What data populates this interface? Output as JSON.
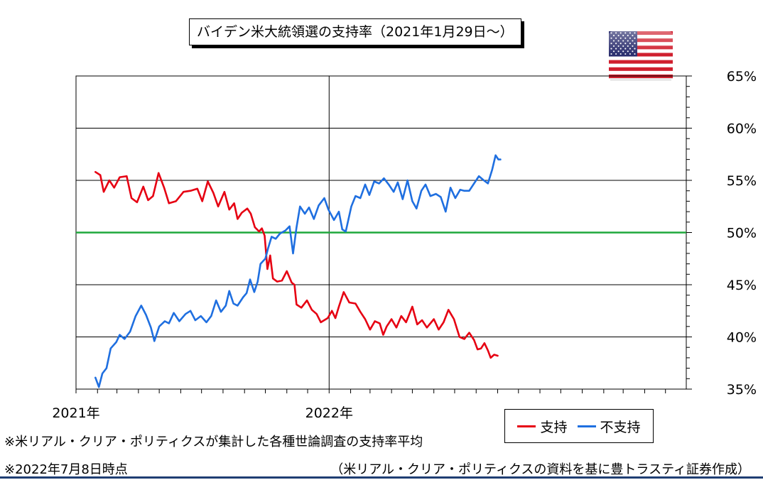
{
  "title": "バイデン米大統領選の支持率（2021年1月29日～）",
  "flag": {
    "icon": "us-flag-icon",
    "colors": {
      "red": "#d01f2e",
      "white": "#ffffff",
      "blue": "#2b2e6e"
    }
  },
  "legend": {
    "approve_label": "支持",
    "disapprove_label": "不支持"
  },
  "notes": {
    "note1": "※米リアル・クリア・ポリティクスが集計した各種世論調査の支持率平均",
    "note2": "※2022年7月8日時点",
    "source": "（米リアル・クリア・ポリティクスの資料を基に豊トラスティ証券作成）"
  },
  "chart_data": {
    "type": "line",
    "title": "バイデン米大統領選の支持率（2021年1月29日～）",
    "xlabel": "",
    "ylabel": "",
    "x_range": [
      "2021-01-01",
      "2023-05-31"
    ],
    "x_tick_labels": [
      {
        "date": "2021-01-01",
        "label": "2021年"
      },
      {
        "date": "2022-01-01",
        "label": "2022年"
      }
    ],
    "ylim": [
      35,
      65
    ],
    "y_ticks": [
      35,
      40,
      45,
      50,
      55,
      60,
      65
    ],
    "y_tick_labels": [
      "35%",
      "40%",
      "45%",
      "50%",
      "55%",
      "60%",
      "65%"
    ],
    "y_axis_side": "right",
    "grid": true,
    "reference_line": {
      "value": 50,
      "color": "#1fa83c"
    },
    "legend_position": "bottom-right",
    "series": [
      {
        "name": "支持",
        "color": "#e60012",
        "points": [
          [
            "2021-01-29",
            55.8
          ],
          [
            "2021-02-05",
            55.5
          ],
          [
            "2021-02-10",
            53.9
          ],
          [
            "2021-02-18",
            55.0
          ],
          [
            "2021-02-25",
            54.3
          ],
          [
            "2021-03-05",
            55.3
          ],
          [
            "2021-03-15",
            55.4
          ],
          [
            "2021-03-22",
            53.3
          ],
          [
            "2021-03-30",
            52.9
          ],
          [
            "2021-04-08",
            54.4
          ],
          [
            "2021-04-15",
            53.1
          ],
          [
            "2021-04-22",
            53.5
          ],
          [
            "2021-04-30",
            55.7
          ],
          [
            "2021-05-08",
            54.3
          ],
          [
            "2021-05-15",
            52.8
          ],
          [
            "2021-05-25",
            53.0
          ],
          [
            "2021-06-05",
            53.9
          ],
          [
            "2021-06-15",
            54.0
          ],
          [
            "2021-06-25",
            54.2
          ],
          [
            "2021-07-02",
            53.0
          ],
          [
            "2021-07-10",
            54.9
          ],
          [
            "2021-07-18",
            53.8
          ],
          [
            "2021-07-25",
            52.5
          ],
          [
            "2021-08-03",
            53.9
          ],
          [
            "2021-08-10",
            52.2
          ],
          [
            "2021-08-17",
            52.8
          ],
          [
            "2021-08-22",
            51.3
          ],
          [
            "2021-08-28",
            51.9
          ],
          [
            "2021-09-05",
            52.3
          ],
          [
            "2021-09-10",
            51.8
          ],
          [
            "2021-09-16",
            50.5
          ],
          [
            "2021-09-22",
            50.1
          ],
          [
            "2021-09-26",
            50.4
          ],
          [
            "2021-09-30",
            49.7
          ],
          [
            "2021-10-04",
            46.5
          ],
          [
            "2021-10-08",
            47.8
          ],
          [
            "2021-10-12",
            45.6
          ],
          [
            "2021-10-18",
            45.3
          ],
          [
            "2021-10-25",
            45.4
          ],
          [
            "2021-11-01",
            46.3
          ],
          [
            "2021-11-08",
            45.2
          ],
          [
            "2021-11-12",
            45.0
          ],
          [
            "2021-11-15",
            43.1
          ],
          [
            "2021-11-22",
            42.8
          ],
          [
            "2021-11-30",
            43.5
          ],
          [
            "2021-12-07",
            42.6
          ],
          [
            "2021-12-14",
            42.2
          ],
          [
            "2021-12-20",
            41.4
          ],
          [
            "2021-12-30",
            41.8
          ],
          [
            "2022-01-05",
            42.5
          ],
          [
            "2022-01-10",
            41.8
          ],
          [
            "2022-01-15",
            42.9
          ],
          [
            "2022-01-22",
            44.3
          ],
          [
            "2022-01-30",
            43.3
          ],
          [
            "2022-02-08",
            43.2
          ],
          [
            "2022-02-15",
            42.4
          ],
          [
            "2022-02-22",
            41.7
          ],
          [
            "2022-03-01",
            40.7
          ],
          [
            "2022-03-08",
            41.5
          ],
          [
            "2022-03-15",
            41.3
          ],
          [
            "2022-03-20",
            40.2
          ],
          [
            "2022-03-25",
            41.0
          ],
          [
            "2022-04-01",
            41.7
          ],
          [
            "2022-04-08",
            40.9
          ],
          [
            "2022-04-15",
            42.0
          ],
          [
            "2022-04-22",
            41.4
          ],
          [
            "2022-05-01",
            42.9
          ],
          [
            "2022-05-08",
            41.2
          ],
          [
            "2022-05-15",
            41.6
          ],
          [
            "2022-05-22",
            40.9
          ],
          [
            "2022-06-01",
            41.7
          ],
          [
            "2022-06-08",
            40.7
          ],
          [
            "2022-06-15",
            41.4
          ],
          [
            "2022-06-22",
            42.6
          ],
          [
            "2022-06-30",
            41.7
          ],
          [
            "2022-07-08",
            40.0
          ],
          [
            "2022-07-15",
            39.8
          ],
          [
            "2022-07-22",
            40.4
          ],
          [
            "2022-07-29",
            39.7
          ],
          [
            "2022-08-03",
            38.8
          ],
          [
            "2022-08-08",
            38.9
          ],
          [
            "2022-08-13",
            39.4
          ],
          [
            "2022-08-18",
            38.7
          ],
          [
            "2022-08-22",
            38.0
          ],
          [
            "2022-08-27",
            38.3
          ],
          [
            "2022-09-01",
            38.2
          ]
        ]
      },
      {
        "name": "不支持",
        "color": "#1f6fe0",
        "points": [
          [
            "2021-01-29",
            36.1
          ],
          [
            "2021-02-03",
            35.2
          ],
          [
            "2021-02-08",
            36.5
          ],
          [
            "2021-02-14",
            37.0
          ],
          [
            "2021-02-20",
            38.9
          ],
          [
            "2021-02-28",
            39.5
          ],
          [
            "2021-03-05",
            40.2
          ],
          [
            "2021-03-12",
            39.8
          ],
          [
            "2021-03-20",
            40.5
          ],
          [
            "2021-03-28",
            42.0
          ],
          [
            "2021-04-05",
            43.0
          ],
          [
            "2021-04-12",
            42.1
          ],
          [
            "2021-04-19",
            40.9
          ],
          [
            "2021-04-24",
            39.6
          ],
          [
            "2021-05-01",
            41.0
          ],
          [
            "2021-05-09",
            41.5
          ],
          [
            "2021-05-15",
            41.3
          ],
          [
            "2021-05-22",
            42.3
          ],
          [
            "2021-05-30",
            41.5
          ],
          [
            "2021-06-08",
            42.2
          ],
          [
            "2021-06-15",
            42.5
          ],
          [
            "2021-06-22",
            41.6
          ],
          [
            "2021-06-30",
            42.0
          ],
          [
            "2021-07-08",
            41.4
          ],
          [
            "2021-07-15",
            42.0
          ],
          [
            "2021-07-22",
            43.5
          ],
          [
            "2021-07-29",
            42.4
          ],
          [
            "2021-08-05",
            43.0
          ],
          [
            "2021-08-10",
            44.4
          ],
          [
            "2021-08-16",
            43.2
          ],
          [
            "2021-08-22",
            43.0
          ],
          [
            "2021-08-30",
            43.8
          ],
          [
            "2021-09-04",
            44.2
          ],
          [
            "2021-09-09",
            45.5
          ],
          [
            "2021-09-15",
            44.3
          ],
          [
            "2021-09-20",
            45.3
          ],
          [
            "2021-09-24",
            47.0
          ],
          [
            "2021-10-01",
            47.5
          ],
          [
            "2021-10-05",
            48.5
          ],
          [
            "2021-10-10",
            49.6
          ],
          [
            "2021-10-16",
            49.4
          ],
          [
            "2021-10-22",
            49.9
          ],
          [
            "2021-10-30",
            50.2
          ],
          [
            "2021-11-05",
            50.6
          ],
          [
            "2021-11-10",
            48.0
          ],
          [
            "2021-11-15",
            50.5
          ],
          [
            "2021-11-20",
            52.5
          ],
          [
            "2021-11-27",
            51.8
          ],
          [
            "2021-12-03",
            52.4
          ],
          [
            "2021-12-10",
            51.3
          ],
          [
            "2021-12-17",
            52.6
          ],
          [
            "2021-12-25",
            53.3
          ],
          [
            "2021-12-31",
            52.2
          ],
          [
            "2022-01-08",
            51.2
          ],
          [
            "2022-01-15",
            52.0
          ],
          [
            "2022-01-20",
            50.3
          ],
          [
            "2022-01-25",
            50.1
          ],
          [
            "2022-02-02",
            52.5
          ],
          [
            "2022-02-08",
            53.5
          ],
          [
            "2022-02-15",
            53.3
          ],
          [
            "2022-02-22",
            54.6
          ],
          [
            "2022-02-28",
            53.6
          ],
          [
            "2022-03-07",
            54.9
          ],
          [
            "2022-03-14",
            54.7
          ],
          [
            "2022-03-21",
            55.2
          ],
          [
            "2022-03-28",
            54.6
          ],
          [
            "2022-04-04",
            53.9
          ],
          [
            "2022-04-10",
            54.8
          ],
          [
            "2022-04-17",
            53.2
          ],
          [
            "2022-04-24",
            55.0
          ],
          [
            "2022-05-01",
            53.0
          ],
          [
            "2022-05-07",
            52.3
          ],
          [
            "2022-05-14",
            54.0
          ],
          [
            "2022-05-20",
            54.6
          ],
          [
            "2022-05-27",
            53.5
          ],
          [
            "2022-06-04",
            53.7
          ],
          [
            "2022-06-11",
            53.4
          ],
          [
            "2022-06-18",
            52.0
          ],
          [
            "2022-06-25",
            54.3
          ],
          [
            "2022-07-02",
            53.3
          ],
          [
            "2022-07-09",
            54.1
          ],
          [
            "2022-07-15",
            54.0
          ],
          [
            "2022-07-22",
            54.0
          ],
          [
            "2022-07-29",
            54.7
          ],
          [
            "2022-08-05",
            55.4
          ],
          [
            "2022-08-12",
            55.0
          ],
          [
            "2022-08-18",
            54.7
          ],
          [
            "2022-08-24",
            56.0
          ],
          [
            "2022-08-29",
            57.4
          ],
          [
            "2022-09-02",
            57.0
          ],
          [
            "2022-09-05",
            57.0
          ]
        ]
      }
    ]
  }
}
